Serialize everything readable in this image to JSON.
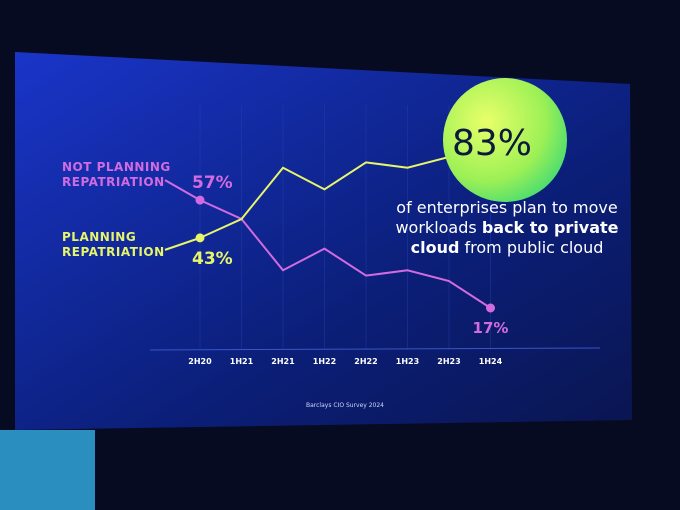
{
  "chart_data": {
    "type": "line",
    "categories": [
      "2H20",
      "1H21",
      "2H21",
      "1H22",
      "2H22",
      "1H23",
      "2H23",
      "1H24"
    ],
    "series": [
      {
        "name": "NOT PLANNING REPATRIATION",
        "color": "#d36be0",
        "values": [
          57,
          50,
          31,
          39,
          29,
          31,
          27,
          17
        ],
        "value_labels": [
          "57%",
          null,
          null,
          null,
          null,
          null,
          null,
          "17%"
        ]
      },
      {
        "name": "PLANNING REPATRIATION",
        "color": "#e6f56a",
        "values": [
          43,
          50,
          69,
          61,
          71,
          69,
          73,
          83
        ],
        "value_labels": [
          "43%",
          null,
          null,
          null,
          null,
          null,
          null,
          "83%"
        ]
      }
    ],
    "annotation": [
      "of enterprises plan to move workloads",
      "back to private cloud",
      "from public cloud"
    ],
    "source": "Barclays CIO Survey 2024"
  }
}
